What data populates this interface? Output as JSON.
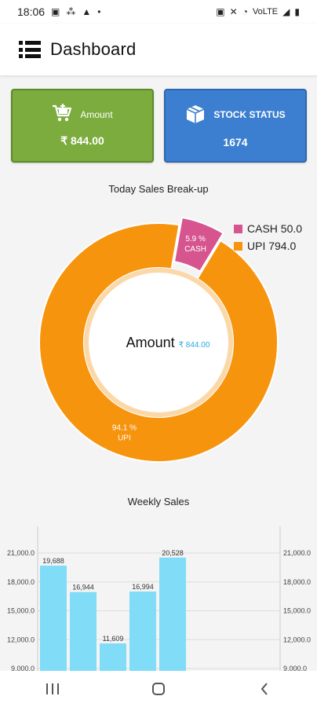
{
  "status_bar": {
    "time": "18:06",
    "right_text": "VoLTE"
  },
  "app_bar": {
    "title": "Dashboard",
    "menu_icon": "hamburger-list-icon"
  },
  "cards": {
    "amount": {
      "label": "Amount",
      "value": "₹ 844.00",
      "icon": "cart-icon",
      "color": "#7cac3e"
    },
    "stock": {
      "label": "STOCK STATUS",
      "value": "1674",
      "icon": "box-icon",
      "color": "#3c7fd0"
    }
  },
  "donut": {
    "title": "Today Sales Break-up",
    "center_label": "Amount",
    "center_value": "₹ 844.00",
    "slices": [
      {
        "name": "CASH",
        "value": 50.0,
        "pct_label": "5.9 %",
        "color": "#d6558f",
        "legend": "CASH  50.0"
      },
      {
        "name": "UPI",
        "value": 794.0,
        "pct_label": "94.1 %",
        "color": "#f7940d",
        "legend": "UPI  794.0"
      }
    ]
  },
  "chart_data": {
    "type": "bar",
    "title": "Weekly Sales",
    "values": [
      19688,
      16944,
      11609,
      16994,
      20528
    ],
    "bar_labels": [
      "19,688",
      "16,944",
      "11,609",
      "16,994",
      "20,528"
    ],
    "y_ticks": [
      "9,000.0",
      "12,000.0",
      "15,000.0",
      "18,000.0",
      "21,000.0"
    ],
    "y_tick_values": [
      9000,
      12000,
      15000,
      18000,
      21000
    ],
    "ylim": [
      9000,
      21000
    ],
    "color": "#80dcf7",
    "grid": true
  },
  "nav": {
    "recents_icon": "recents-icon",
    "home_icon": "home-icon",
    "back_icon": "back-icon"
  }
}
